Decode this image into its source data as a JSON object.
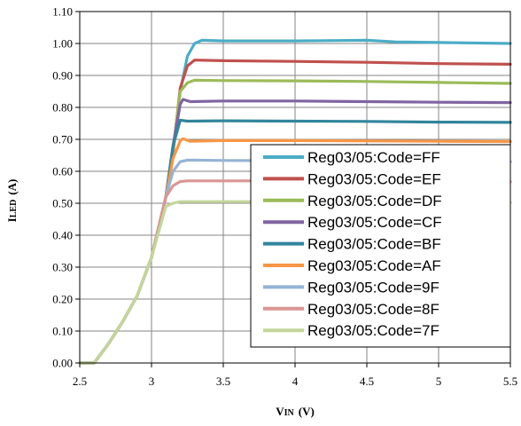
{
  "chart_data": {
    "type": "line",
    "xlabel_main": "V",
    "xlabel_sub": "IN",
    "xlabel_unit": "(V)",
    "ylabel_main": "I",
    "ylabel_sub": "LED",
    "ylabel_unit": "(A)",
    "xlim": [
      2.5,
      5.5
    ],
    "ylim": [
      0.0,
      1.1
    ],
    "x_ticks": [
      "2.5",
      "3",
      "3.5",
      "4",
      "4.5",
      "5",
      "5.5"
    ],
    "y_ticks": [
      "0.00",
      "0.10",
      "0.20",
      "0.30",
      "0.40",
      "0.50",
      "0.60",
      "0.70",
      "0.80",
      "0.90",
      "1.00",
      "1.10"
    ],
    "grid": true,
    "legend_position": "bottom-right",
    "series": [
      {
        "name": "Reg03/05:Code=FF",
        "color": "#4BACC6",
        "points": [
          [
            2.5,
            0.0
          ],
          [
            2.6,
            0.0
          ],
          [
            2.7,
            0.06
          ],
          [
            2.8,
            0.13
          ],
          [
            2.9,
            0.21
          ],
          [
            3.0,
            0.33
          ],
          [
            3.1,
            0.52
          ],
          [
            3.15,
            0.66
          ],
          [
            3.2,
            0.85
          ],
          [
            3.25,
            0.96
          ],
          [
            3.3,
            1.0
          ],
          [
            3.35,
            1.01
          ],
          [
            3.5,
            1.008
          ],
          [
            4.0,
            1.008
          ],
          [
            4.5,
            1.01
          ],
          [
            4.7,
            1.005
          ],
          [
            5.0,
            1.003
          ],
          [
            5.5,
            1.0
          ]
        ]
      },
      {
        "name": "Reg03/05:Code=EF",
        "color": "#C0504D",
        "points": [
          [
            2.5,
            0.0
          ],
          [
            2.6,
            0.0
          ],
          [
            2.7,
            0.06
          ],
          [
            2.8,
            0.13
          ],
          [
            2.9,
            0.21
          ],
          [
            3.0,
            0.33
          ],
          [
            3.1,
            0.52
          ],
          [
            3.15,
            0.66
          ],
          [
            3.2,
            0.86
          ],
          [
            3.25,
            0.93
          ],
          [
            3.3,
            0.948
          ],
          [
            3.5,
            0.946
          ],
          [
            4.0,
            0.944
          ],
          [
            4.5,
            0.941
          ],
          [
            5.0,
            0.937
          ],
          [
            5.5,
            0.935
          ]
        ]
      },
      {
        "name": "Reg03/05:Code=DF",
        "color": "#9BBB59",
        "points": [
          [
            2.5,
            0.0
          ],
          [
            2.6,
            0.0
          ],
          [
            2.7,
            0.06
          ],
          [
            2.8,
            0.13
          ],
          [
            2.9,
            0.21
          ],
          [
            3.0,
            0.33
          ],
          [
            3.1,
            0.52
          ],
          [
            3.15,
            0.67
          ],
          [
            3.2,
            0.85
          ],
          [
            3.25,
            0.877
          ],
          [
            3.3,
            0.885
          ],
          [
            3.5,
            0.884
          ],
          [
            4.0,
            0.883
          ],
          [
            4.5,
            0.881
          ],
          [
            5.0,
            0.878
          ],
          [
            5.5,
            0.875
          ]
        ]
      },
      {
        "name": "Reg03/05:Code=CF",
        "color": "#8064A2",
        "points": [
          [
            2.5,
            0.0
          ],
          [
            2.6,
            0.0
          ],
          [
            2.7,
            0.06
          ],
          [
            2.8,
            0.13
          ],
          [
            2.9,
            0.21
          ],
          [
            3.0,
            0.33
          ],
          [
            3.1,
            0.52
          ],
          [
            3.15,
            0.68
          ],
          [
            3.2,
            0.81
          ],
          [
            3.22,
            0.825
          ],
          [
            3.27,
            0.818
          ],
          [
            3.5,
            0.82
          ],
          [
            4.0,
            0.82
          ],
          [
            4.5,
            0.818
          ],
          [
            5.0,
            0.816
          ],
          [
            5.5,
            0.815
          ]
        ]
      },
      {
        "name": "Reg03/05:Code=BF",
        "color": "#31859C",
        "points": [
          [
            2.5,
            0.0
          ],
          [
            2.6,
            0.0
          ],
          [
            2.7,
            0.06
          ],
          [
            2.8,
            0.13
          ],
          [
            2.9,
            0.21
          ],
          [
            3.0,
            0.33
          ],
          [
            3.1,
            0.52
          ],
          [
            3.15,
            0.68
          ],
          [
            3.2,
            0.76
          ],
          [
            3.25,
            0.757
          ],
          [
            3.5,
            0.758
          ],
          [
            4.0,
            0.757
          ],
          [
            4.5,
            0.756
          ],
          [
            5.0,
            0.754
          ],
          [
            5.5,
            0.753
          ]
        ]
      },
      {
        "name": "Reg03/05:Code=AF",
        "color": "#F79646",
        "points": [
          [
            2.5,
            0.0
          ],
          [
            2.6,
            0.0
          ],
          [
            2.7,
            0.06
          ],
          [
            2.8,
            0.13
          ],
          [
            2.9,
            0.21
          ],
          [
            3.0,
            0.33
          ],
          [
            3.1,
            0.52
          ],
          [
            3.15,
            0.64
          ],
          [
            3.2,
            0.695
          ],
          [
            3.22,
            0.702
          ],
          [
            3.27,
            0.694
          ],
          [
            3.5,
            0.696
          ],
          [
            4.0,
            0.696
          ],
          [
            4.5,
            0.695
          ],
          [
            5.0,
            0.694
          ],
          [
            5.5,
            0.693
          ]
        ]
      },
      {
        "name": "Reg03/05:Code=9F",
        "color": "#95B3D7",
        "points": [
          [
            2.5,
            0.0
          ],
          [
            2.6,
            0.0
          ],
          [
            2.7,
            0.06
          ],
          [
            2.8,
            0.13
          ],
          [
            2.9,
            0.21
          ],
          [
            3.0,
            0.33
          ],
          [
            3.1,
            0.52
          ],
          [
            3.15,
            0.6
          ],
          [
            3.2,
            0.63
          ],
          [
            3.25,
            0.635
          ],
          [
            3.5,
            0.634
          ],
          [
            4.0,
            0.633
          ],
          [
            4.5,
            0.632
          ],
          [
            5.0,
            0.631
          ],
          [
            5.5,
            0.63
          ]
        ]
      },
      {
        "name": "Reg03/05:Code=8F",
        "color": "#D99694",
        "points": [
          [
            2.5,
            0.0
          ],
          [
            2.6,
            0.0
          ],
          [
            2.7,
            0.06
          ],
          [
            2.8,
            0.13
          ],
          [
            2.9,
            0.21
          ],
          [
            3.0,
            0.33
          ],
          [
            3.1,
            0.52
          ],
          [
            3.15,
            0.555
          ],
          [
            3.2,
            0.568
          ],
          [
            3.25,
            0.57
          ],
          [
            3.5,
            0.57
          ],
          [
            4.0,
            0.57
          ],
          [
            4.5,
            0.569
          ],
          [
            5.0,
            0.568
          ],
          [
            5.5,
            0.567
          ]
        ]
      },
      {
        "name": "Reg03/05:Code=7F",
        "color": "#C3D69B",
        "points": [
          [
            2.5,
            0.0
          ],
          [
            2.6,
            0.0
          ],
          [
            2.7,
            0.06
          ],
          [
            2.8,
            0.13
          ],
          [
            2.9,
            0.21
          ],
          [
            3.0,
            0.33
          ],
          [
            3.1,
            0.49
          ],
          [
            3.15,
            0.5
          ],
          [
            3.2,
            0.505
          ],
          [
            3.5,
            0.505
          ],
          [
            4.0,
            0.505
          ],
          [
            4.5,
            0.504
          ],
          [
            5.0,
            0.503
          ],
          [
            5.5,
            0.502
          ]
        ]
      }
    ]
  }
}
